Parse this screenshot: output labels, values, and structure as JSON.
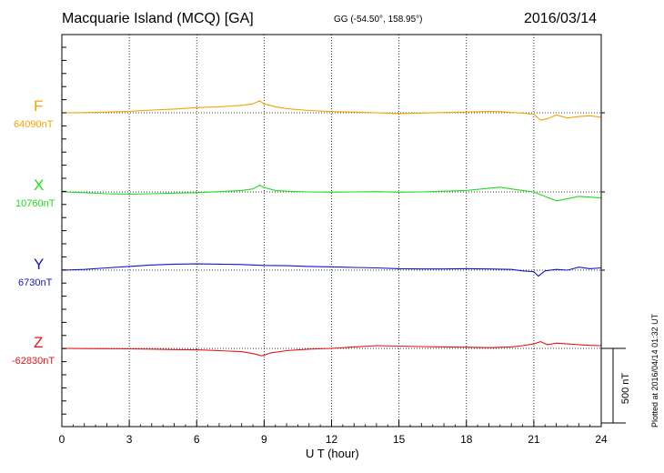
{
  "header": {
    "station": "Macquarie Island (MCQ)  [GA]",
    "coords": "GG (-54.50°, 158.95°)",
    "date": "2016/03/14"
  },
  "plotted_note": "Plotted at 2016/04/14 01:32 UT",
  "chart_data": {
    "type": "line",
    "xlabel": "U T (hour)",
    "xlim": [
      0,
      24
    ],
    "xticks": [
      0,
      3,
      6,
      9,
      12,
      15,
      18,
      21,
      24
    ],
    "scale_bar_label": "500 nT",
    "scale_bar_nT": 500,
    "grid": "dotted vertical at every 3 hours",
    "series": [
      {
        "name": "F",
        "baseline_label": "64090nT",
        "baseline": 64090,
        "color": "#f5a300",
        "x": [
          0,
          1,
          2,
          3,
          4,
          5,
          6,
          7,
          8,
          8.5,
          8.8,
          9,
          9.5,
          10,
          11,
          12,
          13,
          14,
          15,
          16,
          17,
          18,
          19,
          19.5,
          20,
          20.5,
          21,
          21.3,
          21.6,
          22,
          22.5,
          23,
          23.5,
          24
        ],
        "y": [
          64090,
          64091,
          64095,
          64100,
          64108,
          64115,
          64125,
          64130,
          64140,
          64150,
          64170,
          64150,
          64130,
          64118,
          64105,
          64098,
          64095,
          64090,
          64085,
          64088,
          64092,
          64095,
          64100,
          64098,
          64092,
          64088,
          64080,
          64040,
          64050,
          64075,
          64055,
          64065,
          64070,
          64060
        ]
      },
      {
        "name": "X",
        "baseline_label": "10760nT",
        "baseline": 10760,
        "color": "#1fdd1f",
        "x": [
          0,
          1,
          2,
          3,
          4,
          5,
          6,
          7,
          8,
          8.5,
          8.8,
          9,
          9.5,
          10,
          11,
          12,
          13,
          14,
          15,
          16,
          17,
          18,
          19,
          19.5,
          20,
          20.5,
          21,
          21.5,
          22,
          22.5,
          23,
          23.5,
          24
        ],
        "y": [
          10760,
          10755,
          10748,
          10745,
          10748,
          10752,
          10755,
          10762,
          10770,
          10780,
          10805,
          10790,
          10770,
          10765,
          10760,
          10758,
          10760,
          10762,
          10758,
          10760,
          10765,
          10770,
          10785,
          10792,
          10780,
          10770,
          10760,
          10730,
          10700,
          10715,
          10730,
          10725,
          10720
        ]
      },
      {
        "name": "Y",
        "baseline_label": "6730nT",
        "baseline": 6730,
        "color": "#1414cc",
        "x": [
          0,
          1,
          2,
          3,
          4,
          5,
          6,
          7,
          8,
          9,
          10,
          11,
          12,
          13,
          14,
          15,
          16,
          17,
          18,
          19,
          20,
          20.5,
          21,
          21.2,
          21.5,
          22,
          22.5,
          23,
          23.5,
          24
        ],
        "y": [
          6730,
          6735,
          6745,
          6755,
          6765,
          6770,
          6772,
          6770,
          6768,
          6762,
          6760,
          6755,
          6752,
          6748,
          6745,
          6740,
          6738,
          6738,
          6740,
          6738,
          6735,
          6725,
          6720,
          6690,
          6725,
          6735,
          6730,
          6750,
          6740,
          6745
        ]
      },
      {
        "name": "Z",
        "baseline_label": "-62830nT",
        "baseline": -62830,
        "color": "#e61414",
        "x": [
          0,
          1,
          2,
          3,
          4,
          5,
          6,
          7,
          8,
          8.5,
          8.9,
          9.3,
          10,
          11,
          12,
          13,
          14,
          15,
          16,
          17,
          18,
          19,
          20,
          20.5,
          21,
          21.3,
          21.6,
          22,
          22.5,
          23,
          23.5,
          24
        ],
        "y": [
          -62830,
          -62831,
          -62832,
          -62833,
          -62835,
          -62838,
          -62840,
          -62845,
          -62852,
          -62865,
          -62880,
          -62860,
          -62845,
          -62835,
          -62830,
          -62820,
          -62812,
          -62815,
          -62818,
          -62820,
          -62822,
          -62825,
          -62820,
          -62812,
          -62800,
          -62785,
          -62805,
          -62795,
          -62800,
          -62805,
          -62810,
          -62812
        ]
      }
    ]
  }
}
